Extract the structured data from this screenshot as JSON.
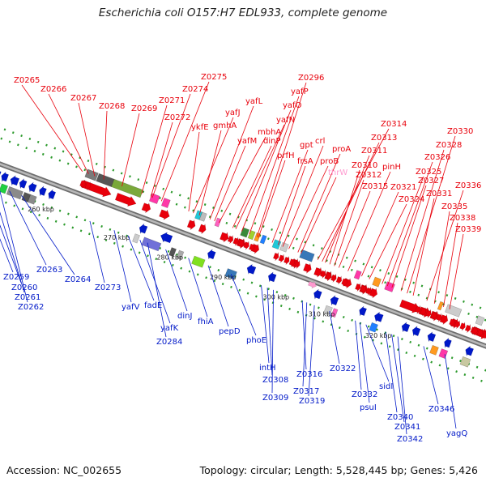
{
  "title": "Escherichia coli O157:H7 EDL933, complete genome",
  "footer": {
    "accession": "Accession: NC_002655",
    "summary": "Topology: circular; Length: 5,528,445 bp; Genes: 5,426"
  },
  "colors": {
    "forward": "#e8000b",
    "reverse": "#0018c8",
    "rna": "#ff9ad0",
    "backbone": "#8a8a8a"
  },
  "scale_ticks": [
    "260 kbp",
    "270 kbp",
    "280 kbp",
    "290 kbp",
    "300 kbp",
    "310 kbp",
    "320 kbp"
  ],
  "forward_labels": [
    "Z0265",
    "Z0266",
    "Z0267",
    "Z0268",
    "Z0269",
    "Z0271",
    "Z0274",
    "Z0275",
    "Z0272",
    "ykfE",
    "yafJ",
    "gmhA",
    "yafL",
    "yafM",
    "mbhA",
    "dinP",
    "yafN",
    "yafO",
    "yafP",
    "Z0296",
    "prfH",
    "gpt",
    "frsA",
    "crl",
    "proB",
    "proA",
    "thrW",
    "Z0314",
    "Z0313",
    "Z0311",
    "Z0310",
    "Z0312",
    "Z0315",
    "pinH",
    "Z0321",
    "Z0324",
    "Z0325",
    "Z0326",
    "Z0327",
    "Z0328",
    "Z0330",
    "Z0331",
    "Z0336",
    "Z0335",
    "Z0338",
    "Z0339"
  ],
  "reverse_labels": [
    "Z0259",
    "Z0260",
    "Z0261",
    "Z0262",
    "Z0263",
    "Z0264",
    "Z0273",
    "yafV",
    "fadE",
    "yafK",
    "Z0284",
    "dinJ",
    "fhiA",
    "pepD",
    "phoE",
    "intH",
    "Z0308",
    "Z0309",
    "Z0316",
    "Z0317",
    "Z0319",
    "Z0322",
    "Z0332",
    "psuI",
    "sidI",
    "Z0340",
    "Z0341",
    "Z0342",
    "Z0346",
    "yagQ"
  ]
}
